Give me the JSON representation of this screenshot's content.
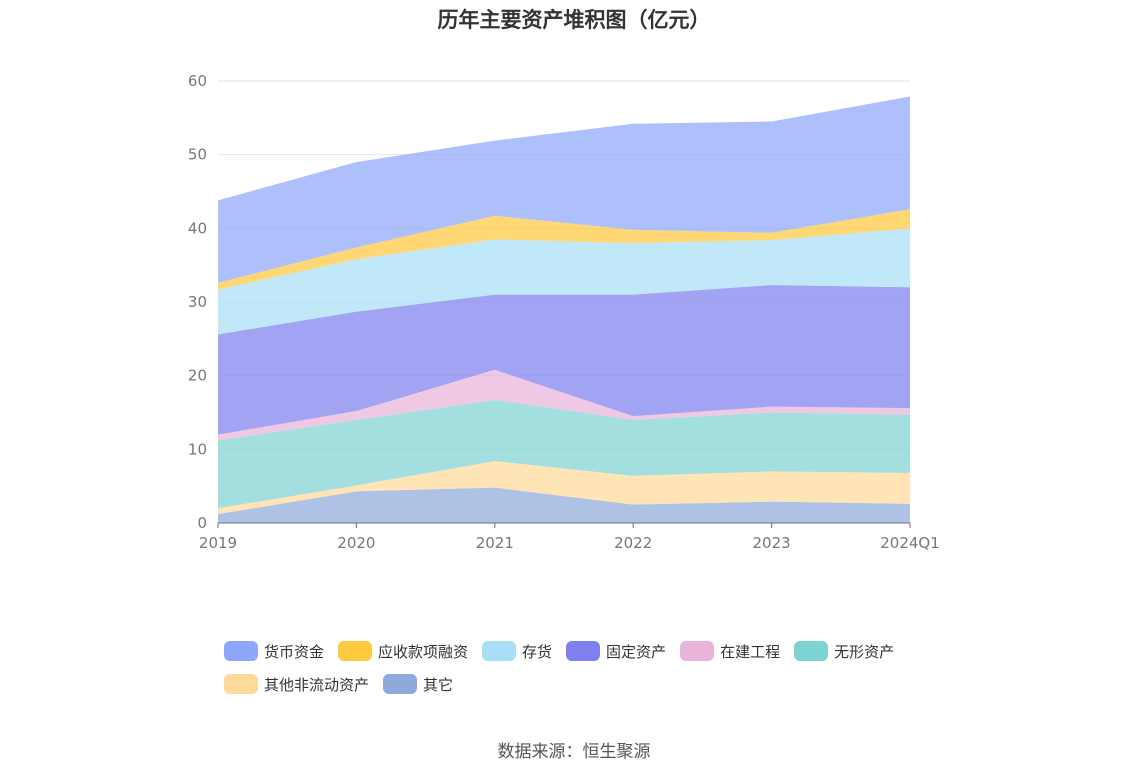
{
  "chart_data": {
    "type": "area",
    "stacked": true,
    "title": "历年主要资产堆积图（亿元）",
    "x": [
      "2019",
      "2020",
      "2021",
      "2022",
      "2023",
      "2024Q1"
    ],
    "ylim": [
      0,
      60
    ],
    "yticks": [
      "0",
      "10",
      "20",
      "30",
      "40",
      "50",
      "60"
    ],
    "grid": true,
    "legend_position": "bottom",
    "series": [
      {
        "name": "其它",
        "color": "#8eaadb",
        "values": [
          1.2,
          4.3,
          4.8,
          2.5,
          2.9,
          2.6
        ]
      },
      {
        "name": "其他非流动资产",
        "color": "#ffd99a",
        "values": [
          0.8,
          0.8,
          3.6,
          3.9,
          4.1,
          4.2
        ]
      },
      {
        "name": "无形资产",
        "color": "#7fd3d2",
        "values": [
          9.2,
          8.9,
          8.3,
          7.6,
          8.0,
          7.9
        ]
      },
      {
        "name": "在建工程",
        "color": "#e9b4d9",
        "values": [
          0.8,
          1.2,
          4.1,
          0.5,
          0.8,
          0.9
        ]
      },
      {
        "name": "固定资产",
        "color": "#7f7ff0",
        "values": [
          13.6,
          13.5,
          10.2,
          16.5,
          16.5,
          16.4
        ]
      },
      {
        "name": "存货",
        "color": "#a8dff7",
        "values": [
          6.1,
          7.1,
          7.5,
          7.0,
          6.1,
          8.0
        ]
      },
      {
        "name": "应收款项融资",
        "color": "#ffc940",
        "values": [
          0.9,
          1.6,
          3.2,
          1.8,
          1.0,
          2.6
        ]
      },
      {
        "name": "货币资金",
        "color": "#8ea7fb",
        "values": [
          11.2,
          11.6,
          10.2,
          14.4,
          15.1,
          15.3
        ]
      }
    ]
  },
  "legend": {
    "rows": [
      [
        {
          "label": "货币资金",
          "color": "#8ea7fb"
        },
        {
          "label": "应收款项融资",
          "color": "#ffc940"
        },
        {
          "label": "存货",
          "color": "#a8dff7"
        },
        {
          "label": "固定资产",
          "color": "#7f7ff0"
        },
        {
          "label": "在建工程",
          "color": "#e9b4d9"
        },
        {
          "label": "无形资产",
          "color": "#7fd3d2"
        }
      ],
      [
        {
          "label": "其他非流动资产",
          "color": "#ffd99a"
        },
        {
          "label": "其它",
          "color": "#8eaadb"
        }
      ]
    ]
  },
  "source": "数据来源：恒生聚源"
}
